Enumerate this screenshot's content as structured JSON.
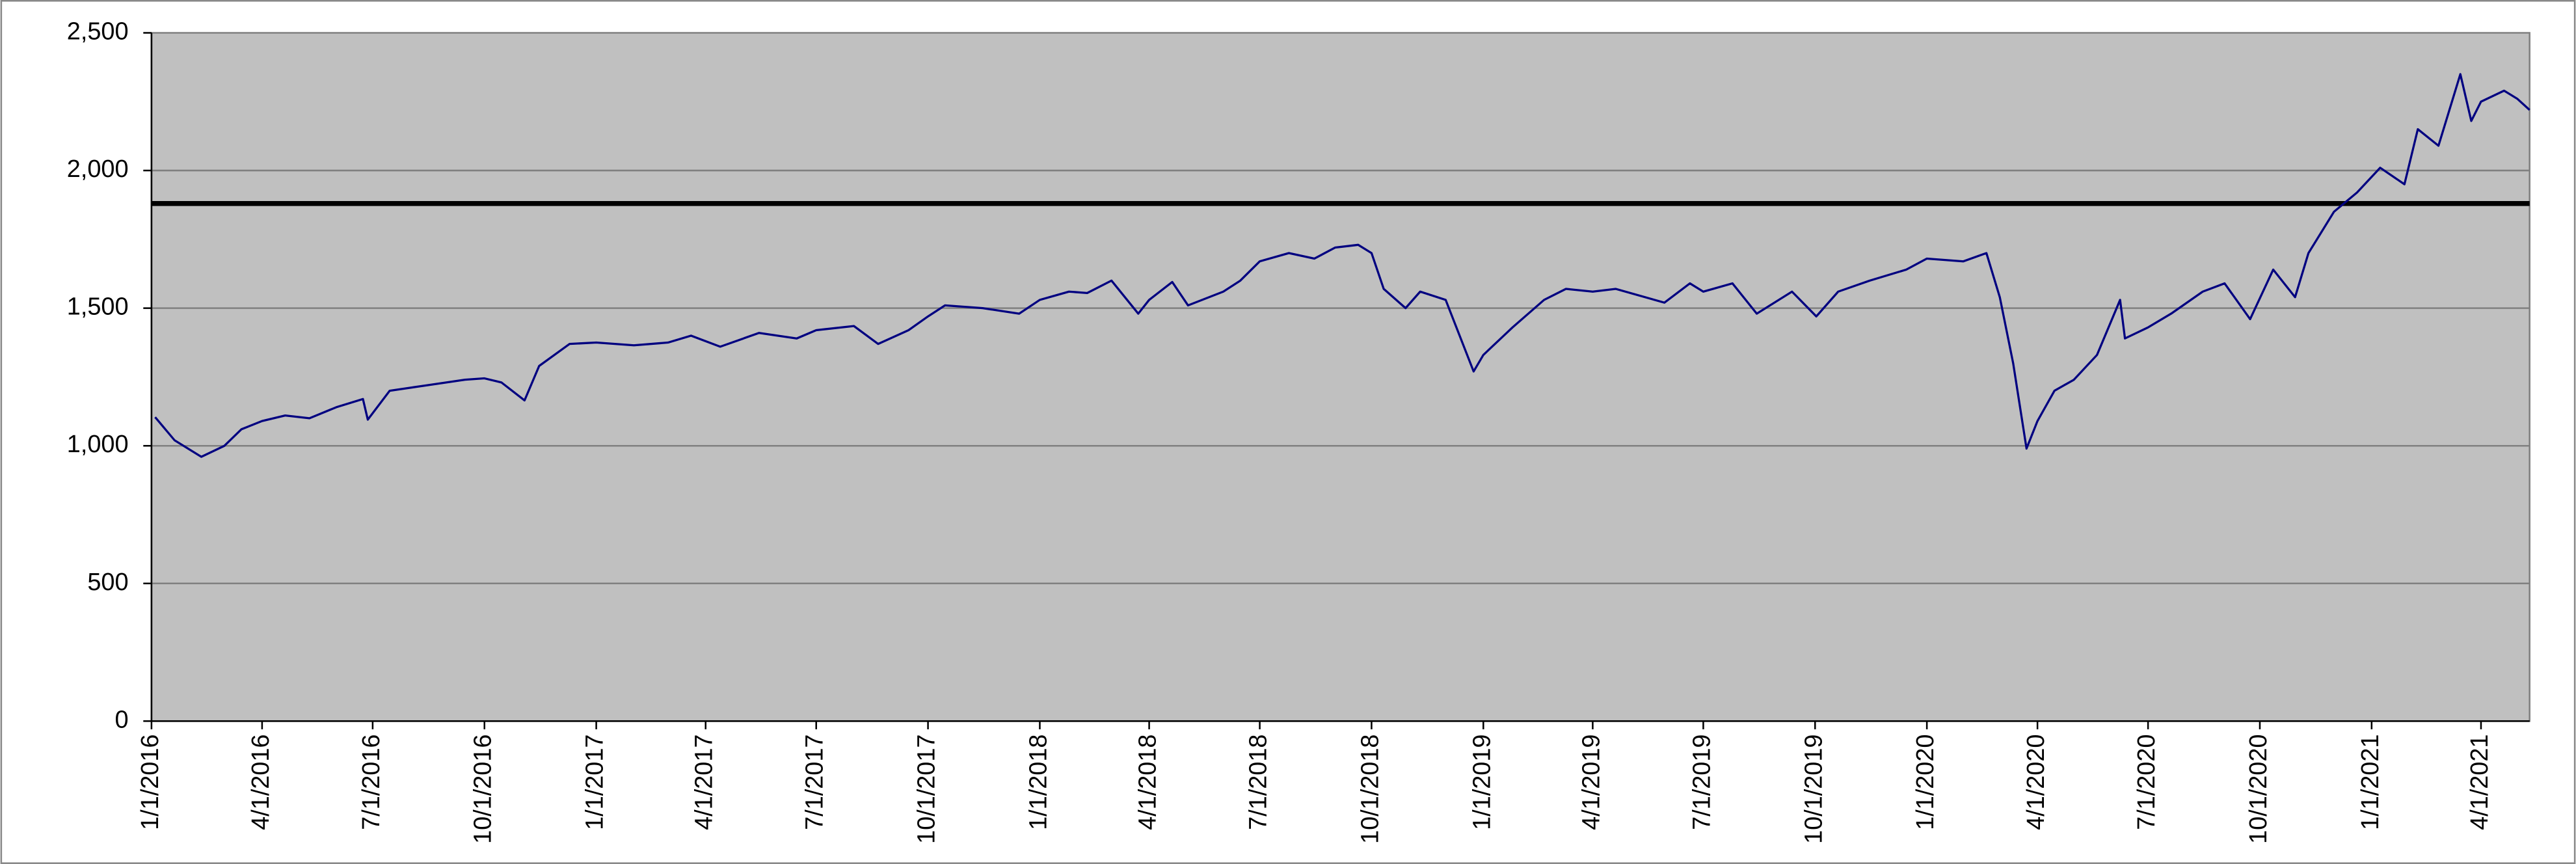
{
  "chart_data": {
    "type": "line",
    "x": [
      "1/4/2016",
      "1/20/2016",
      "2/11/2016",
      "3/1/2016",
      "3/15/2016",
      "4/1/2016",
      "4/20/2016",
      "5/10/2016",
      "6/1/2016",
      "6/23/2016",
      "6/27/2016",
      "7/15/2016",
      "8/15/2016",
      "9/15/2016",
      "10/1/2016",
      "10/15/2016",
      "11/3/2016",
      "11/15/2016",
      "12/10/2016",
      "1/1/2017",
      "2/1/2017",
      "3/1/2017",
      "3/20/2017",
      "4/13/2017",
      "5/15/2017",
      "6/15/2017",
      "7/1/2017",
      "8/1/2017",
      "8/21/2017",
      "9/15/2017",
      "10/1/2017",
      "10/15/2017",
      "11/15/2017",
      "12/15/2017",
      "1/1/2018",
      "1/25/2018",
      "2/9/2018",
      "3/1/2018",
      "3/23/2018",
      "4/1/2018",
      "4/20/2018",
      "5/3/2018",
      "6/1/2018",
      "6/15/2018",
      "7/1/2018",
      "7/25/2018",
      "8/15/2018",
      "9/1/2018",
      "9/20/2018",
      "10/1/2018",
      "10/11/2018",
      "10/29/2018",
      "11/10/2018",
      "12/1/2018",
      "12/24/2018",
      "1/1/2019",
      "1/25/2019",
      "2/20/2019",
      "3/10/2019",
      "4/1/2019",
      "4/20/2019",
      "5/30/2019",
      "6/20/2019",
      "7/1/2019",
      "7/25/2019",
      "8/14/2019",
      "9/12/2019",
      "10/2/2019",
      "10/20/2019",
      "11/15/2019",
      "12/15/2019",
      "1/1/2020",
      "1/31/2020",
      "2/19/2020",
      "3/1/2020",
      "3/12/2020",
      "3/23/2020",
      "4/1/2020",
      "4/15/2020",
      "5/1/2020",
      "5/20/2020",
      "6/8/2020",
      "6/12/2020",
      "7/1/2020",
      "7/20/2020",
      "8/15/2020",
      "9/2/2020",
      "9/23/2020",
      "10/12/2020",
      "10/30/2020",
      "11/10/2020",
      "12/1/2020",
      "12/20/2020",
      "1/8/2021",
      "1/28/2021",
      "2/8/2021",
      "2/25/2021",
      "3/15/2021",
      "3/24/2021",
      "4/1/2021",
      "4/20/2021",
      "5/1/2021",
      "5/11/2021"
    ],
    "values": [
      1104,
      1020,
      960,
      1000,
      1060,
      1090,
      1110,
      1100,
      1140,
      1170,
      1095,
      1200,
      1220,
      1240,
      1245,
      1230,
      1165,
      1290,
      1370,
      1375,
      1365,
      1375,
      1400,
      1360,
      1410,
      1390,
      1420,
      1435,
      1370,
      1420,
      1470,
      1510,
      1500,
      1480,
      1530,
      1560,
      1555,
      1600,
      1480,
      1530,
      1595,
      1510,
      1560,
      1600,
      1670,
      1700,
      1680,
      1720,
      1730,
      1700,
      1570,
      1500,
      1560,
      1530,
      1270,
      1330,
      1430,
      1530,
      1570,
      1560,
      1570,
      1520,
      1590,
      1560,
      1590,
      1480,
      1560,
      1470,
      1560,
      1600,
      1640,
      1680,
      1670,
      1700,
      1540,
      1300,
      990,
      1090,
      1200,
      1240,
      1330,
      1530,
      1390,
      1430,
      1480,
      1560,
      1590,
      1460,
      1640,
      1540,
      1700,
      1850,
      1920,
      2010,
      1950,
      2150,
      2090,
      2350,
      2180,
      2250,
      2290,
      2260,
      2220
    ],
    "color": "#000080",
    "xlim": [
      "1/1/2016",
      "5/11/2021"
    ],
    "xticks": [
      "1/1/2016",
      "4/1/2016",
      "7/1/2016",
      "10/1/2016",
      "1/1/2017",
      "4/1/2017",
      "7/1/2017",
      "10/1/2017",
      "1/1/2018",
      "4/1/2018",
      "7/1/2018",
      "10/1/2018",
      "1/1/2019",
      "4/1/2019",
      "7/1/2019",
      "10/1/2019",
      "1/1/2020",
      "4/1/2020",
      "7/1/2020",
      "10/1/2020",
      "1/1/2021",
      "4/1/2021"
    ],
    "ylim": [
      0,
      2500
    ],
    "yticks": [
      0,
      500,
      {
        "value": 1000,
        "label": "1,000"
      },
      {
        "value": 1500,
        "label": "1,500"
      },
      {
        "value": 2000,
        "label": "2,000"
      },
      {
        "value": 2500,
        "label": "2,500"
      }
    ],
    "grid": true,
    "reference_lines": [
      {
        "value": 1880,
        "color": "#000000"
      }
    ]
  }
}
